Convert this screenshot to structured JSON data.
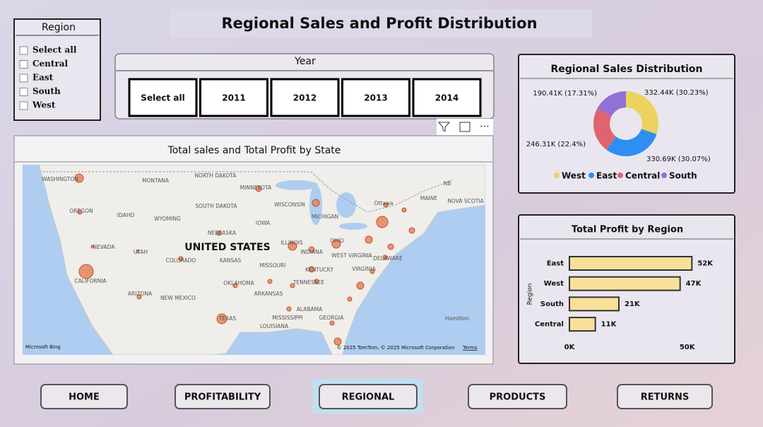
{
  "title": "Regional Sales and Profit Distribution",
  "region_slicer": {
    "title": "Region",
    "options": [
      "Select all",
      "Central",
      "East",
      "South",
      "West"
    ]
  },
  "year_slicer": {
    "title": "Year",
    "options": [
      "Select all",
      "2011",
      "2012",
      "2013",
      "2014"
    ]
  },
  "map": {
    "title": "Total sales and Total Profit by State",
    "country": "UNITED STATES",
    "labels": [
      "WASHINGTON",
      "MONTANA",
      "NORTH DAKOTA",
      "MINNESOTA",
      "OREGON",
      "IDAHO",
      "SOUTH DAKOTA",
      "WISCONSIN",
      "MICHIGAN",
      "WYOMING",
      "IOWA",
      "NEBRASKA",
      "NEVADA",
      "UTAH",
      "COLORADO",
      "KANSAS",
      "ILLINOIS",
      "INDIANA",
      "OHIO",
      "MISSOURI",
      "CALIFORNIA",
      "KENTUCKY",
      "WEST VIRGINIA",
      "VIRGINIA",
      "OKLAHOMA",
      "TENNESSEE",
      "ARKANSAS",
      "ARIZONA",
      "NEW MEXICO",
      "ALABAMA",
      "GEORGIA",
      "MISSISSIPPI",
      "TEXAS",
      "LOUISIANA",
      "Ottawa",
      "MAINE",
      "NOVA SCOTIA",
      "NB",
      "Hamilton",
      "DELAWARE"
    ],
    "logo": "Microsoft Bing",
    "attribution": "© 2025 TomTom, © 2025 Microsoft Corporation",
    "terms": "Terms"
  },
  "donut": {
    "type": "pie",
    "title": "Regional Sales Distribution",
    "categories": [
      "West",
      "East",
      "Central",
      "South"
    ],
    "values": [
      332.44,
      330.69,
      246.31,
      190.41
    ],
    "value_labels": [
      "332.44K (30.23%)",
      "330.69K (30.07%)",
      "246.31K (22.4%)",
      "190.41K (17.31%)"
    ],
    "colors": [
      "#ecd25e",
      "#2e8ff0",
      "#e0646f",
      "#9270d4"
    ]
  },
  "profit": {
    "type": "bar",
    "title": "Total Profit by Region",
    "y_label": "Region",
    "categories": [
      "East",
      "West",
      "South",
      "Central"
    ],
    "values": [
      52,
      47,
      21,
      11
    ],
    "value_labels": [
      "52K",
      "47K",
      "21K",
      "11K"
    ],
    "color": "#f7e19a",
    "xlim": [
      0,
      60
    ],
    "xticks": [
      {
        "value": 0,
        "label": "0K"
      },
      {
        "value": 50,
        "label": "50K"
      }
    ]
  },
  "nav": [
    "HOME",
    "PROFITABILITY",
    "REGIONAL",
    "PRODUCTS",
    "RETURNS"
  ]
}
